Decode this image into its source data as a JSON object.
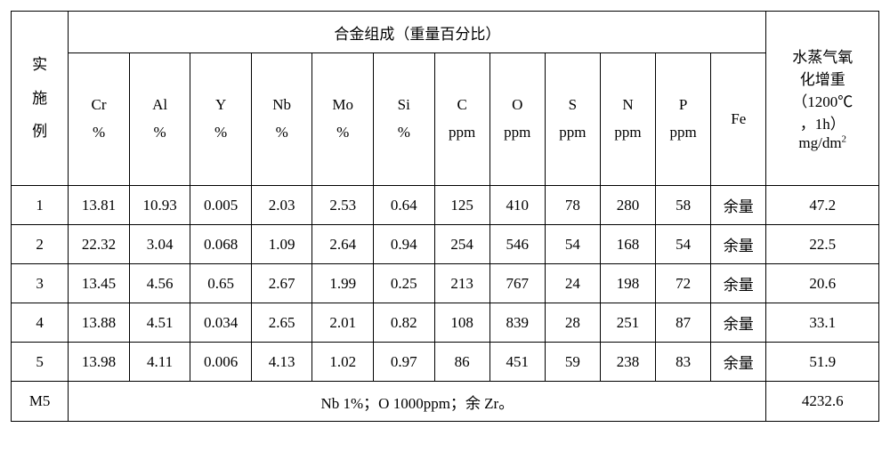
{
  "table": {
    "type": "table",
    "background_color": "#ffffff",
    "border_color": "#000000",
    "font_family": "SimSun",
    "font_size_pt": 13,
    "text_color": "#000000",
    "header": {
      "example_label": "实<br>施<br>例",
      "composition_title": "合金组成（重量百分比）",
      "result_label": "水蒸气氧<br>化增重<br>（1200℃<br>，1h）<br>mg/dm<sup>2</sup>",
      "columns": [
        {
          "top": "Cr",
          "bot": "%"
        },
        {
          "top": "Al",
          "bot": "%"
        },
        {
          "top": "Y",
          "bot": "%"
        },
        {
          "top": "Nb",
          "bot": "%"
        },
        {
          "top": "Mo",
          "bot": "%"
        },
        {
          "top": "Si",
          "bot": "%"
        },
        {
          "top": "C",
          "bot": "ppm"
        },
        {
          "top": "O",
          "bot": "ppm"
        },
        {
          "top": "S",
          "bot": "ppm"
        },
        {
          "top": "N",
          "bot": "ppm"
        },
        {
          "top": "P",
          "bot": "ppm"
        },
        {
          "top": "Fe",
          "bot": ""
        }
      ]
    },
    "rows": [
      {
        "id": "1",
        "cr": "13.81",
        "al": "10.93",
        "y": "0.005",
        "nb": "2.03",
        "mo": "2.53",
        "si": "0.64",
        "c": "125",
        "o": "410",
        "s": "78",
        "n": "280",
        "p": "58",
        "fe": "余量",
        "res": "47.2"
      },
      {
        "id": "2",
        "cr": "22.32",
        "al": "3.04",
        "y": "0.068",
        "nb": "1.09",
        "mo": "2.64",
        "si": "0.94",
        "c": "254",
        "o": "546",
        "s": "54",
        "n": "168",
        "p": "54",
        "fe": "余量",
        "res": "22.5"
      },
      {
        "id": "3",
        "cr": "13.45",
        "al": "4.56",
        "y": "0.65",
        "nb": "2.67",
        "mo": "1.99",
        "si": "0.25",
        "c": "213",
        "o": "767",
        "s": "24",
        "n": "198",
        "p": "72",
        "fe": "余量",
        "res": "20.6"
      },
      {
        "id": "4",
        "cr": "13.88",
        "al": "4.51",
        "y": "0.034",
        "nb": "2.65",
        "mo": "2.01",
        "si": "0.82",
        "c": "108",
        "o": "839",
        "s": "28",
        "n": "251",
        "p": "87",
        "fe": "余量",
        "res": "33.1"
      },
      {
        "id": "5",
        "cr": "13.98",
        "al": "4.11",
        "y": "0.006",
        "nb": "4.13",
        "mo": "1.02",
        "si": "0.97",
        "c": "86",
        "o": "451",
        "s": "59",
        "n": "238",
        "p": "83",
        "fe": "余量",
        "res": "51.9"
      }
    ],
    "m5": {
      "id": "M5",
      "note": "Nb 1%；O 1000ppm；余 Zr。",
      "res": "4232.6"
    }
  }
}
